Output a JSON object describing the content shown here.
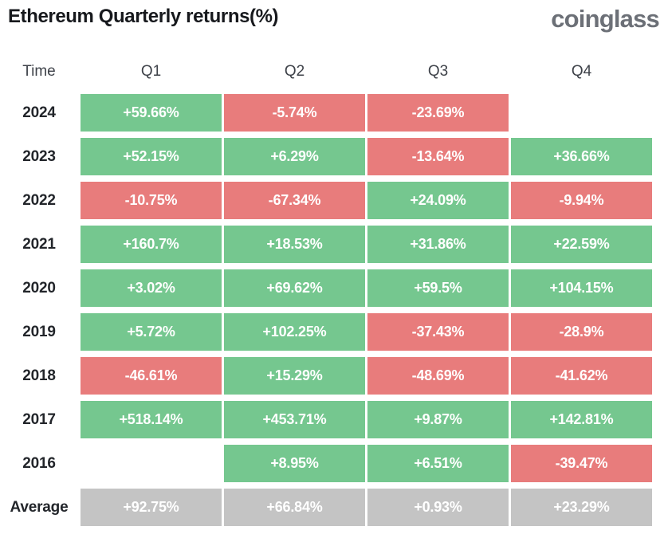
{
  "header": {
    "title": "Ethereum Quarterly returns(%)",
    "logo": "coinglass"
  },
  "colors": {
    "positive": "#75c78f",
    "negative": "#e87c7c",
    "average": "#c4c4c4",
    "cell_text": "#ffffff",
    "title_text": "#17191d",
    "logo_text": "#6c7077"
  },
  "table": {
    "columns": [
      "Time",
      "Q1",
      "Q2",
      "Q3",
      "Q4"
    ],
    "rows": [
      {
        "label": "2024",
        "cells": [
          {
            "value": "+59.66%",
            "type": "positive"
          },
          {
            "value": "-5.74%",
            "type": "negative"
          },
          {
            "value": "-23.69%",
            "type": "negative"
          },
          {
            "value": "",
            "type": "empty"
          }
        ]
      },
      {
        "label": "2023",
        "cells": [
          {
            "value": "+52.15%",
            "type": "positive"
          },
          {
            "value": "+6.29%",
            "type": "positive"
          },
          {
            "value": "-13.64%",
            "type": "negative"
          },
          {
            "value": "+36.66%",
            "type": "positive"
          }
        ]
      },
      {
        "label": "2022",
        "cells": [
          {
            "value": "-10.75%",
            "type": "negative"
          },
          {
            "value": "-67.34%",
            "type": "negative"
          },
          {
            "value": "+24.09%",
            "type": "positive"
          },
          {
            "value": "-9.94%",
            "type": "negative"
          }
        ]
      },
      {
        "label": "2021",
        "cells": [
          {
            "value": "+160.7%",
            "type": "positive"
          },
          {
            "value": "+18.53%",
            "type": "positive"
          },
          {
            "value": "+31.86%",
            "type": "positive"
          },
          {
            "value": "+22.59%",
            "type": "positive"
          }
        ]
      },
      {
        "label": "2020",
        "cells": [
          {
            "value": "+3.02%",
            "type": "positive"
          },
          {
            "value": "+69.62%",
            "type": "positive"
          },
          {
            "value": "+59.5%",
            "type": "positive"
          },
          {
            "value": "+104.15%",
            "type": "positive"
          }
        ]
      },
      {
        "label": "2019",
        "cells": [
          {
            "value": "+5.72%",
            "type": "positive"
          },
          {
            "value": "+102.25%",
            "type": "positive"
          },
          {
            "value": "-37.43%",
            "type": "negative"
          },
          {
            "value": "-28.9%",
            "type": "negative"
          }
        ]
      },
      {
        "label": "2018",
        "cells": [
          {
            "value": "-46.61%",
            "type": "negative"
          },
          {
            "value": "+15.29%",
            "type": "positive"
          },
          {
            "value": "-48.69%",
            "type": "negative"
          },
          {
            "value": "-41.62%",
            "type": "negative"
          }
        ]
      },
      {
        "label": "2017",
        "cells": [
          {
            "value": "+518.14%",
            "type": "positive"
          },
          {
            "value": "+453.71%",
            "type": "positive"
          },
          {
            "value": "+9.87%",
            "type": "positive"
          },
          {
            "value": "+142.81%",
            "type": "positive"
          }
        ]
      },
      {
        "label": "2016",
        "cells": [
          {
            "value": "",
            "type": "empty"
          },
          {
            "value": "+8.95%",
            "type": "positive"
          },
          {
            "value": "+6.51%",
            "type": "positive"
          },
          {
            "value": "-39.47%",
            "type": "negative"
          }
        ]
      },
      {
        "label": "Average",
        "cells": [
          {
            "value": "+92.75%",
            "type": "average"
          },
          {
            "value": "+66.84%",
            "type": "average"
          },
          {
            "value": "+0.93%",
            "type": "average"
          },
          {
            "value": "+23.29%",
            "type": "average"
          }
        ]
      }
    ]
  },
  "chart_data": {
    "type": "heatmap",
    "title": "Ethereum Quarterly returns(%)",
    "columns": [
      "Q1",
      "Q2",
      "Q3",
      "Q4"
    ],
    "row_labels": [
      "2024",
      "2023",
      "2022",
      "2021",
      "2020",
      "2019",
      "2018",
      "2017",
      "2016",
      "Average"
    ],
    "values": [
      [
        59.66,
        -5.74,
        -23.69,
        null
      ],
      [
        52.15,
        6.29,
        -13.64,
        36.66
      ],
      [
        -10.75,
        -67.34,
        24.09,
        -9.94
      ],
      [
        160.7,
        18.53,
        31.86,
        22.59
      ],
      [
        3.02,
        69.62,
        59.5,
        104.15
      ],
      [
        5.72,
        102.25,
        -37.43,
        -28.9
      ],
      [
        -46.61,
        15.29,
        -48.69,
        -41.62
      ],
      [
        518.14,
        453.71,
        9.87,
        142.81
      ],
      [
        null,
        8.95,
        6.51,
        -39.47
      ],
      [
        92.75,
        66.84,
        0.93,
        23.29
      ]
    ],
    "color_encoding": {
      "positive": "#75c78f",
      "negative": "#e87c7c",
      "average_row": "#c4c4c4",
      "missing": "white"
    },
    "unit": "%"
  }
}
